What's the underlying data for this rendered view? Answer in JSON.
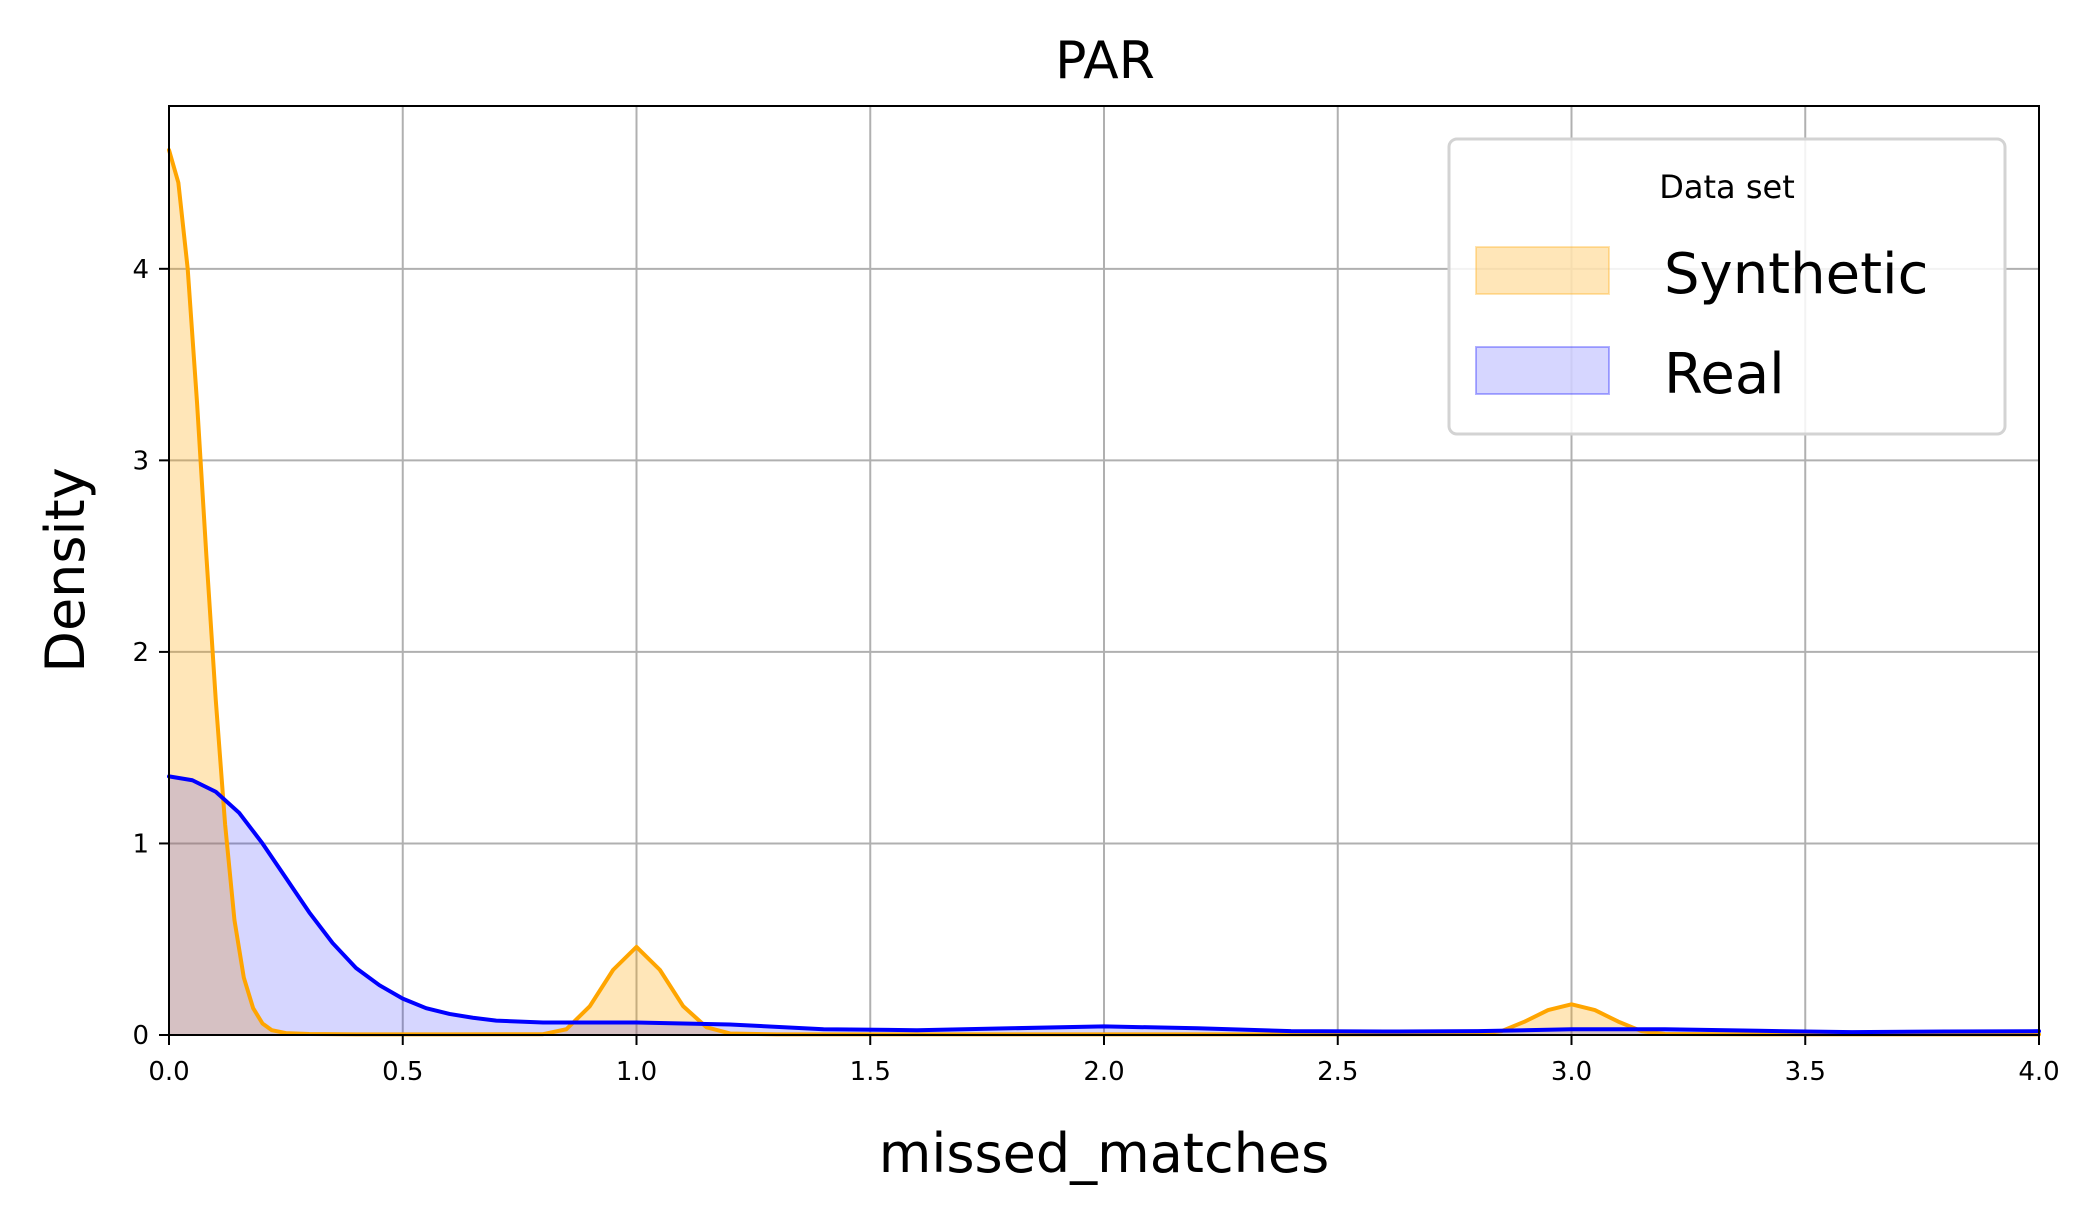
{
  "chart_data": {
    "type": "area",
    "title": "PAR",
    "xlabel": "missed_matches",
    "ylabel": "Density",
    "xlim": [
      0,
      4
    ],
    "ylim": [
      0,
      4.85
    ],
    "xticks": [
      "0.0",
      "0.5",
      "1.0",
      "1.5",
      "2.0",
      "2.5",
      "3.0",
      "3.5",
      "4.0"
    ],
    "yticks": [
      "0",
      "1",
      "2",
      "3",
      "4"
    ],
    "grid": true,
    "legend": {
      "title": "Data set",
      "position": "top-right"
    },
    "series": [
      {
        "name": "Synthetic",
        "line_color": "#FFA500",
        "fill_color": "#FFA500",
        "x": [
          0,
          0.02,
          0.04,
          0.06,
          0.08,
          0.1,
          0.12,
          0.14,
          0.16,
          0.18,
          0.2,
          0.22,
          0.25,
          0.3,
          0.4,
          0.6,
          0.8,
          0.85,
          0.9,
          0.95,
          1.0,
          1.05,
          1.1,
          1.15,
          1.2,
          1.3,
          1.5,
          2.0,
          2.5,
          2.8,
          2.85,
          2.9,
          2.95,
          3.0,
          3.05,
          3.1,
          3.15,
          3.2,
          3.4,
          4.0
        ],
        "y": [
          4.62,
          4.45,
          4.0,
          3.3,
          2.5,
          1.75,
          1.1,
          0.6,
          0.3,
          0.14,
          0.06,
          0.025,
          0.01,
          0.005,
          0.003,
          0.003,
          0.004,
          0.03,
          0.15,
          0.34,
          0.46,
          0.34,
          0.15,
          0.04,
          0.008,
          0.003,
          0.003,
          0.003,
          0.003,
          0.005,
          0.02,
          0.07,
          0.13,
          0.16,
          0.13,
          0.07,
          0.02,
          0.005,
          0.003,
          0.003
        ]
      },
      {
        "name": "Real",
        "line_color": "#0000FF",
        "fill_color": "#0000FF",
        "x": [
          0,
          0.05,
          0.1,
          0.15,
          0.2,
          0.25,
          0.3,
          0.35,
          0.4,
          0.45,
          0.5,
          0.55,
          0.6,
          0.65,
          0.7,
          0.8,
          0.9,
          1.0,
          1.2,
          1.4,
          1.6,
          1.8,
          2.0,
          2.2,
          2.4,
          2.6,
          2.8,
          3.0,
          3.2,
          3.4,
          3.6,
          3.8,
          4.0
        ],
        "y": [
          1.35,
          1.33,
          1.27,
          1.16,
          1.0,
          0.82,
          0.64,
          0.48,
          0.35,
          0.26,
          0.19,
          0.14,
          0.11,
          0.09,
          0.075,
          0.065,
          0.065,
          0.065,
          0.055,
          0.03,
          0.025,
          0.035,
          0.045,
          0.035,
          0.02,
          0.018,
          0.02,
          0.03,
          0.03,
          0.022,
          0.015,
          0.018,
          0.02
        ]
      }
    ]
  }
}
